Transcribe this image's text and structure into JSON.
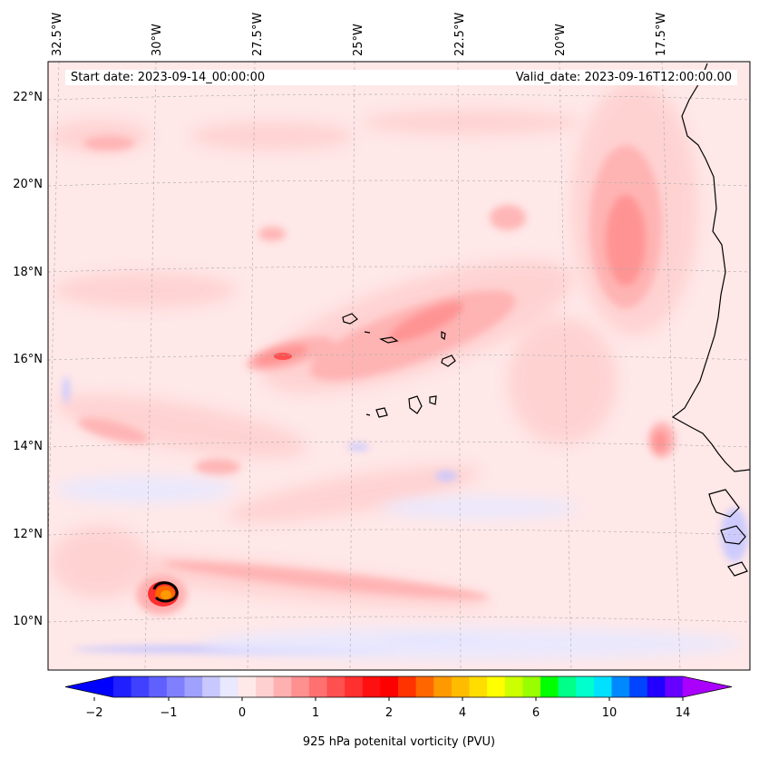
{
  "map": {
    "start_date_label": "Start date: 2023-09-14_00:00:00",
    "valid_date_label": "Valid_date: 2023-09-16T12:00:00.00",
    "lon_ticks": [
      "32.5°W",
      "30°W",
      "27.5°W",
      "25°W",
      "22.5°W",
      "20°W",
      "17.5°W"
    ],
    "lat_ticks": [
      "22°N",
      "20°N",
      "18°N",
      "16°N",
      "14°N",
      "12°N",
      "10°N"
    ]
  },
  "colorbar": {
    "label": "925 hPa potenital vorticity (PVU)",
    "tick_labels": [
      "−2",
      "−1",
      "0",
      "1",
      "2",
      "4",
      "6",
      "10",
      "14"
    ],
    "colors": [
      "#0000ff",
      "#2020ff",
      "#4040ff",
      "#6060ff",
      "#8080ff",
      "#a0a0ff",
      "#c8c8ff",
      "#e8e8ff",
      "#ffe8e8",
      "#ffd0d0",
      "#ffb0b0",
      "#ff9090",
      "#ff7070",
      "#ff5050",
      "#ff3030",
      "#ff1010",
      "#ff0000",
      "#ff3300",
      "#ff6600",
      "#ff9900",
      "#ffbb00",
      "#ffdd00",
      "#ffff00",
      "#ccff00",
      "#99ff00",
      "#00ff00",
      "#00ff88",
      "#00ffcc",
      "#00e0ff",
      "#0088ff",
      "#0044ff",
      "#2200ff",
      "#6600ff",
      "#aa00ff"
    ]
  }
}
